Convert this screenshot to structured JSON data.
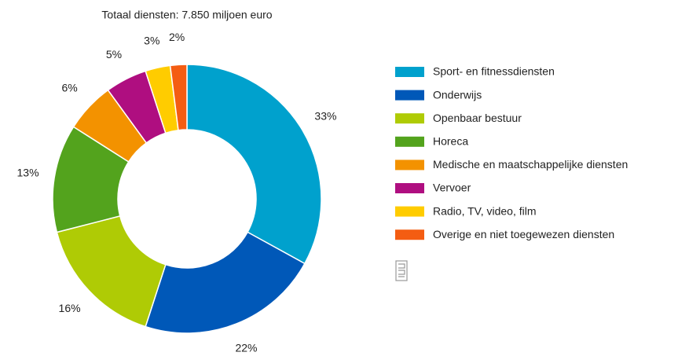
{
  "chart_data": {
    "type": "donut",
    "title": "Totaal diensten: 7.850 miljoen euro",
    "categories": [
      "Sport- en fitnessdiensten",
      "Onderwijs",
      "Openbaar bestuur",
      "Horeca",
      "Medische en maatschappelijke diensten",
      "Vervoer",
      "Radio, TV, video, film",
      "Overige en niet toegewezen diensten"
    ],
    "values": [
      33,
      22,
      16,
      13,
      6,
      5,
      3,
      2
    ],
    "value_labels": [
      "33%",
      "22%",
      "16%",
      "13%",
      "6%",
      "5%",
      "3%",
      "2%"
    ],
    "colors": [
      "#00a1cd",
      "#0058b8",
      "#afcb05",
      "#53a31d",
      "#f39200",
      "#af0e80",
      "#ffcc00",
      "#f45d12"
    ]
  }
}
